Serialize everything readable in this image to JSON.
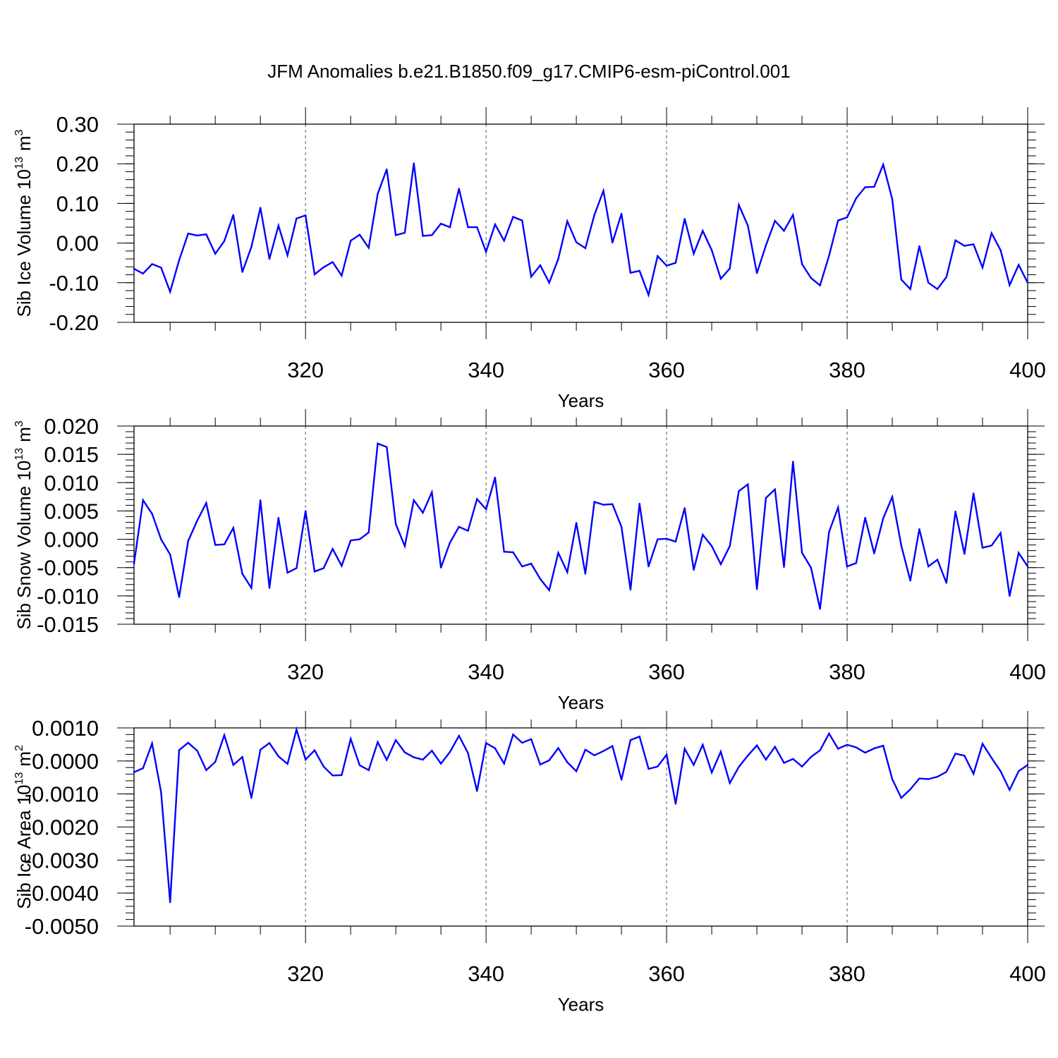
{
  "title": "JFM Anomalies b.e21.B1850.f09_g17.CMIP6-esm-piControl.001",
  "chart_data": [
    {
      "type": "line",
      "title": "JFM Anomalies b.e21.B1850.f09_g17.CMIP6-esm-piControl.001",
      "xlabel": "Years",
      "ylabel": "Sib Ice Volume 10",
      "ylabel_exp": "13",
      "ylabel_unit": "m",
      "ylabel_unit_exp": "3",
      "xlim": [
        301,
        400
      ],
      "ylim": [
        -0.2,
        0.3
      ],
      "x_ticks": [
        "320",
        "340",
        "360",
        "380",
        "400"
      ],
      "x_tick_values": [
        320,
        340,
        360,
        380,
        400
      ],
      "y_ticks": [
        "-0.20",
        "-0.10",
        "0.00",
        "0.10",
        "0.20",
        "0.30"
      ],
      "y_tick_values": [
        -0.2,
        -0.1,
        0.0,
        0.1,
        0.2,
        0.3
      ],
      "y_minor_step": 0.02,
      "grid": "dashed vertical at 320, 340, 360, 380",
      "series": [
        {
          "name": "Sib Ice Volume",
          "color": "#0000ff",
          "x_start": 301,
          "values": [
            -0.065,
            -0.077,
            -0.053,
            -0.062,
            -0.123,
            -0.043,
            0.024,
            0.019,
            0.022,
            -0.027,
            0.005,
            0.071,
            -0.073,
            -0.01,
            0.089,
            -0.04,
            0.044,
            -0.031,
            0.062,
            0.07,
            -0.079,
            -0.061,
            -0.048,
            -0.082,
            0.006,
            0.021,
            -0.012,
            0.124,
            0.186,
            0.02,
            0.026,
            0.201,
            0.018,
            0.02,
            0.049,
            0.04,
            0.137,
            0.04,
            0.04,
            -0.022,
            0.047,
            0.006,
            0.066,
            0.057,
            -0.085,
            -0.056,
            -0.1,
            -0.04,
            0.055,
            0.002,
            -0.013,
            0.071,
            0.132,
            0.001,
            0.074,
            -0.075,
            -0.07,
            -0.131,
            -0.033,
            -0.057,
            -0.05,
            0.061,
            -0.027,
            0.031,
            -0.018,
            -0.09,
            -0.064,
            0.096,
            0.044,
            -0.076,
            -0.006,
            0.056,
            0.031,
            0.071,
            -0.053,
            -0.088,
            -0.107,
            -0.032,
            0.057,
            0.065,
            0.113,
            0.141,
            0.142,
            0.198,
            0.111,
            -0.092,
            -0.116,
            -0.008,
            -0.1,
            -0.116,
            -0.086,
            0.007,
            -0.007,
            -0.003,
            -0.062,
            0.025,
            -0.018,
            -0.106,
            -0.055,
            -0.1
          ]
        }
      ]
    },
    {
      "type": "line",
      "xlabel": "Years",
      "ylabel": "Sib Snow Volume 10",
      "ylabel_exp": "13",
      "ylabel_unit": "m",
      "ylabel_unit_exp": "3",
      "xlim": [
        301,
        400
      ],
      "ylim": [
        -0.015,
        0.02
      ],
      "x_ticks": [
        "320",
        "340",
        "360",
        "380",
        "400"
      ],
      "x_tick_values": [
        320,
        340,
        360,
        380,
        400
      ],
      "y_ticks": [
        "-0.015",
        "-0.010",
        "-0.005",
        "0.000",
        "0.005",
        "0.010",
        "0.015",
        "0.020"
      ],
      "y_tick_values": [
        -0.015,
        -0.01,
        -0.005,
        0.0,
        0.005,
        0.01,
        0.015,
        0.02
      ],
      "y_minor_step": 0.001,
      "grid": "dashed vertical at 320, 340, 360, 380",
      "series": [
        {
          "name": "Sib Snow Volume",
          "color": "#0000ff",
          "x_start": 301,
          "values": [
            -0.0043,
            0.0069,
            0.0045,
            0.0,
            -0.0027,
            -0.0102,
            -0.0003,
            0.0033,
            0.0064,
            -0.001,
            -0.0009,
            0.002,
            -0.0061,
            -0.0086,
            0.0069,
            -0.0086,
            0.0038,
            -0.0059,
            -0.0051,
            0.005,
            -0.0057,
            -0.0051,
            -0.0017,
            -0.0047,
            -0.0002,
            0.0,
            0.0012,
            0.0169,
            0.0163,
            0.0027,
            -0.0012,
            0.0069,
            0.0047,
            0.0083,
            -0.005,
            -0.0006,
            0.0022,
            0.0015,
            0.0071,
            0.0053,
            0.0109,
            -0.0022,
            -0.0023,
            -0.0048,
            -0.0043,
            -0.007,
            -0.009,
            -0.0024,
            -0.0058,
            0.0029,
            -0.0061,
            0.0066,
            0.0061,
            0.0062,
            0.0022,
            -0.0089,
            0.0063,
            -0.0048,
            0.0,
            0.0001,
            -0.0004,
            0.0055,
            -0.0054,
            0.0008,
            -0.0012,
            -0.0044,
            -0.0012,
            0.0085,
            0.0097,
            -0.0088,
            0.0073,
            0.0088,
            -0.0049,
            0.0137,
            -0.0024,
            -0.005,
            -0.0123,
            0.0013,
            0.0056,
            -0.0048,
            -0.0042,
            0.0038,
            -0.0025,
            0.0037,
            0.0075,
            -0.0011,
            -0.0073,
            0.0018,
            -0.0048,
            -0.0036,
            -0.0077,
            0.0049,
            -0.0026,
            0.0081,
            -0.0015,
            -0.0011,
            0.0011,
            -0.01,
            -0.0024,
            -0.0048
          ]
        }
      ]
    },
    {
      "type": "line",
      "xlabel": "Years",
      "ylabel": "Sib Ice Area 10",
      "ylabel_exp": "13",
      "ylabel_unit": "m",
      "ylabel_unit_exp": "2",
      "xlim": [
        301,
        400
      ],
      "ylim": [
        -0.005,
        0.001
      ],
      "x_ticks": [
        "320",
        "340",
        "360",
        "380",
        "400"
      ],
      "x_tick_values": [
        320,
        340,
        360,
        380,
        400
      ],
      "y_ticks": [
        "-0.0050",
        "-0.0040",
        "-0.0030",
        "-0.0020",
        "-0.0010",
        "0.0000",
        "0.0010"
      ],
      "y_tick_values": [
        -0.005,
        -0.004,
        -0.003,
        -0.002,
        -0.001,
        0.0,
        0.001
      ],
      "y_minor_step": 0.0002,
      "grid": "dashed vertical at 320, 340, 360, 380",
      "series": [
        {
          "name": "Sib Ice Area",
          "color": "#0000ff",
          "x_start": 301,
          "values": [
            -0.00034,
            -0.00022,
            0.00053,
            -0.00095,
            -0.00428,
            0.00033,
            0.00055,
            0.00031,
            -0.00028,
            -3e-05,
            0.00078,
            -0.00012,
            0.00012,
            -0.00112,
            0.00034,
            0.00054,
            0.00014,
            -9e-05,
            0.00095,
            4e-05,
            0.00032,
            -0.00017,
            -0.00044,
            -0.00043,
            0.00067,
            -0.00013,
            -0.00028,
            0.00057,
            3e-05,
            0.00063,
            0.00026,
            0.00011,
            4e-05,
            0.00031,
            -8e-05,
            0.00027,
            0.00076,
            0.00024,
            -0.00091,
            0.00054,
            0.00038,
            -8e-05,
            0.0008,
            0.00055,
            0.00066,
            -0.00011,
            2e-05,
            0.00039,
            -4e-05,
            -0.00031,
            0.00034,
            0.00017,
            0.0003,
            0.00045,
            -0.00057,
            0.00063,
            0.00074,
            -0.00024,
            -0.00017,
            0.00019,
            -0.0013,
            0.00037,
            -0.00012,
            0.00049,
            -0.00035,
            0.00028,
            -0.00067,
            -0.00018,
            0.00016,
            0.00047,
            4e-05,
            0.00043,
            -6e-05,
            6e-05,
            -0.00017,
            0.00012,
            0.00032,
            0.00083,
            0.00037,
            0.00049,
            0.00041,
            0.00025,
            0.00038,
            0.00046,
            -0.00055,
            -0.00112,
            -0.00086,
            -0.00053,
            -0.00055,
            -0.00048,
            -0.00033,
            0.00022,
            0.00016,
            -0.00039,
            0.00052,
            9e-05,
            -0.00031,
            -0.00088,
            -0.00031,
            -0.00012
          ]
        }
      ]
    }
  ]
}
